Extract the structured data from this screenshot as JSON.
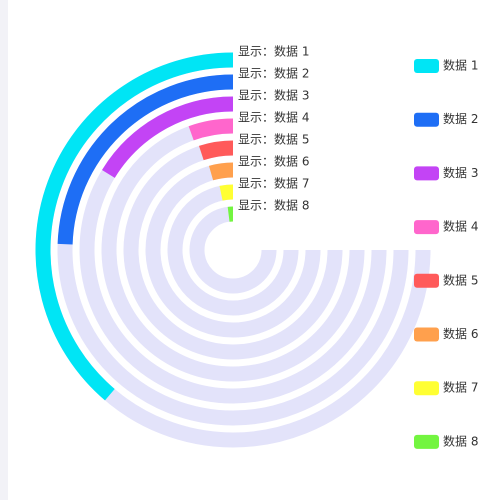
{
  "chart_data": {
    "type": "radial-bar",
    "categories": [
      "数据 1",
      "数据 2",
      "数据 3",
      "数据 4",
      "数据 5",
      "数据 6",
      "数据 7",
      "数据 8"
    ],
    "ring_labels": [
      "显示：数据 1",
      "显示：数据 2",
      "显示：数据 3",
      "显示：数据 4",
      "显示：数据 5",
      "显示：数据 6",
      "显示：数据 7",
      "显示：数据 8"
    ],
    "values": [
      51.7,
      32.6,
      21.7,
      7.3,
      6.7,
      5.9,
      4.4,
      2.6
    ],
    "colors": [
      "#00e5f5",
      "#1e6ef5",
      "#c344f5",
      "#ff66cc",
      "#ff5a5a",
      "#ffa04d",
      "#ffff33",
      "#73f540"
    ],
    "xlim": [
      0,
      100
    ],
    "track_color": "#e3e3fa",
    "legend": "right"
  }
}
